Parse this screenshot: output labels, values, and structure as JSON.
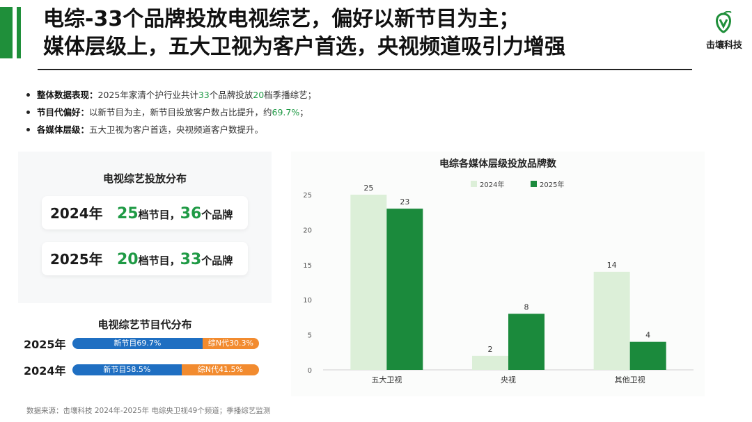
{
  "header": {
    "title_line1": "电综-33个品牌投放电视综艺，偏好以新节目为主；",
    "title_line2": "媒体层级上，五大卫视为客户首选，央视频道吸引力增强",
    "logo_text": "击壤科技",
    "accent_color": "#1f8f3a"
  },
  "bullets": [
    {
      "key": "整体数据表现：",
      "parts": [
        "2025年家清个护行业共计",
        "33",
        "个品牌投放",
        "20",
        "档季播综艺；"
      ]
    },
    {
      "key": "节目代偏好：",
      "parts": [
        "以新节目为主，新节目投放客户数占比提升，约",
        "69.7%",
        "；"
      ]
    },
    {
      "key": "各媒体层级：",
      "parts": [
        "五大卫视为客户首选，央视频道客户数提升。"
      ]
    }
  ],
  "distribution": {
    "title": "电视综艺投放分布",
    "rows": [
      {
        "year": "2024年",
        "programs": "25",
        "programs_unit": "档节目，",
        "brands": "36",
        "brands_unit": "个品牌"
      },
      {
        "year": "2025年",
        "programs": "20",
        "programs_unit": "档节目，",
        "brands": "33",
        "brands_unit": "个品牌"
      }
    ]
  },
  "generation": {
    "title": "电视综艺节目代分布",
    "rows": [
      {
        "year": "2025年",
        "new_label": "新节目69.7%",
        "new_value": 69.7,
        "old_label": "综N代30.3%",
        "old_value": 30.3
      },
      {
        "year": "2024年",
        "new_label": "新节目58.5%",
        "new_value": 58.5,
        "old_label": "综N代41.5%",
        "old_value": 41.5
      }
    ],
    "colors": {
      "new": "#1f6fc2",
      "old": "#f28b2f"
    }
  },
  "chart_data": {
    "type": "bar",
    "title": "电综各媒体层级投放品牌数",
    "categories": [
      "五大卫视",
      "央视",
      "其他卫视"
    ],
    "series": [
      {
        "name": "2024年",
        "values": [
          25,
          2,
          14
        ],
        "color": "#dcefd8"
      },
      {
        "name": "2025年",
        "values": [
          23,
          8,
          4
        ],
        "color": "#1b8a3c"
      }
    ],
    "ylim": [
      0,
      25
    ],
    "yticks": [
      "0",
      "5",
      "10",
      "15",
      "20",
      "25"
    ],
    "legend": "top-center",
    "grid": false
  },
  "footnote": "数据来源：击壤科技  2024年-2025年 电综央卫视49个频道；季播综艺监测"
}
